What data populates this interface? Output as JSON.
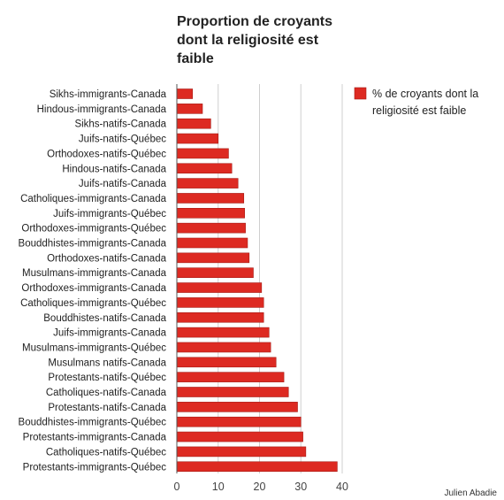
{
  "chart_data": {
    "type": "bar",
    "orientation": "horizontal",
    "title_lines": [
      "Proportion de croyants",
      "dont la religiosité est",
      "faible"
    ],
    "categories": [
      "Sikhs-immigrants-Canada",
      "Hindous-immigrants-Canada",
      "Sikhs-natifs-Canada",
      "Juifs-natifs-Québec",
      "Orthodoxes-natifs-Québec",
      "Hindous-natifs-Canada",
      "Juifs-natifs-Canada",
      "Catholiques-immigrants-Canada",
      "Juifs-immigrants-Québec",
      "Orthodoxes-immigrants-Québec",
      "Bouddhistes-immigrants-Canada",
      "Orthodoxes-natifs-Canada",
      "Musulmans-immigrants-Canada",
      "Orthodoxes-immigrants-Canada",
      "Catholiques-immigrants-Québec",
      "Bouddhistes-natifs-Canada",
      "Juifs-immigrants-Canada",
      "Musulmans-immigrants-Québec",
      "Musulmans natifs-Canada",
      "Protestants-natifs-Québec",
      "Catholiques-natifs-Canada",
      "Protestants-natifs-Canada",
      "Bouddhistes-immigrants-Québec",
      "Protestants-immigrants-Canada",
      "Catholiques-natifs-Québec",
      "Protestants-immigrants-Québec"
    ],
    "series": [
      {
        "name": "% de croyants dont la religiosité est faible",
        "color": "#dd2a22",
        "values": [
          3.8,
          6.2,
          8.2,
          10.0,
          12.5,
          13.3,
          14.8,
          16.2,
          16.4,
          16.6,
          17.1,
          17.5,
          18.5,
          20.5,
          21.0,
          21.0,
          22.3,
          22.7,
          24.0,
          25.9,
          27.0,
          29.2,
          30.0,
          30.5,
          31.2,
          38.8
        ]
      }
    ],
    "xlim": [
      0,
      40
    ],
    "xticks": [
      0,
      10,
      20,
      30,
      40
    ],
    "grid": true,
    "legend_position": "top-right"
  },
  "credit": "Julien Abadie"
}
